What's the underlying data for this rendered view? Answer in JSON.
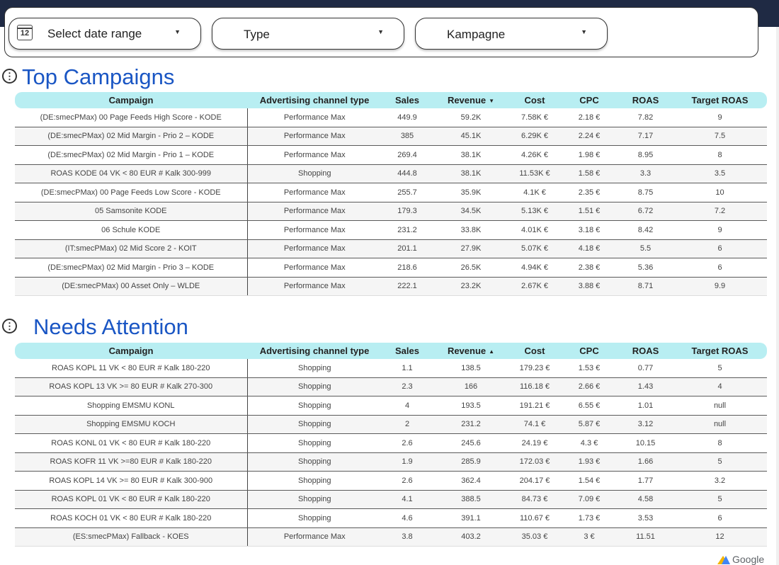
{
  "filters": {
    "date_range": "Select date range",
    "calendar_day": "12",
    "type": "Type",
    "campaign": "Kampagne"
  },
  "sections": {
    "top": "Top Campaigns",
    "attention": "Needs Attention"
  },
  "columns": [
    "Campaign",
    "Advertising channel type",
    "Sales",
    "Revenue",
    "Cost",
    "CPC",
    "ROAS",
    "Target ROAS"
  ],
  "sort_icons": {
    "desc": "▼",
    "asc": "▲"
  },
  "top_campaigns": [
    [
      "(DE:smecPMax) 00 Page Feeds High Score - KODE",
      "Performance Max",
      "449.9",
      "59.2K",
      "7.58K €",
      "2.18 €",
      "7.82",
      "9"
    ],
    [
      "(DE:smecPMax) 02 Mid Margin - Prio 2 – KODE",
      "Performance Max",
      "385",
      "45.1K",
      "6.29K €",
      "2.24 €",
      "7.17",
      "7.5"
    ],
    [
      "(DE:smecPMax) 02 Mid Margin - Prio 1 – KODE",
      "Performance Max",
      "269.4",
      "38.1K",
      "4.26K €",
      "1.98 €",
      "8.95",
      "8"
    ],
    [
      "ROAS KODE 04 VK < 80 EUR # Kalk 300-999",
      "Shopping",
      "444.8",
      "38.1K",
      "11.53K €",
      "1.58 €",
      "3.3",
      "3.5"
    ],
    [
      "(DE:smecPMax) 00 Page Feeds Low Score - KODE",
      "Performance Max",
      "255.7",
      "35.9K",
      "4.1K €",
      "2.35 €",
      "8.75",
      "10"
    ],
    [
      "05 Samsonite KODE",
      "Performance Max",
      "179.3",
      "34.5K",
      "5.13K €",
      "1.51 €",
      "6.72",
      "7.2"
    ],
    [
      "06 Schule KODE",
      "Performance Max",
      "231.2",
      "33.8K",
      "4.01K €",
      "3.18 €",
      "8.42",
      "9"
    ],
    [
      "(IT:smecPMax) 02 Mid Score 2 - KOIT",
      "Performance Max",
      "201.1",
      "27.9K",
      "5.07K €",
      "4.18 €",
      "5.5",
      "6"
    ],
    [
      "(DE:smecPMax) 02 Mid Margin - Prio 3 – KODE",
      "Performance Max",
      "218.6",
      "26.5K",
      "4.94K €",
      "2.38 €",
      "5.36",
      "6"
    ],
    [
      "(DE:smecPMax) 00 Asset Only – WLDE",
      "Performance Max",
      "222.1",
      "23.2K",
      "2.67K €",
      "3.88 €",
      "8.71",
      "9.9"
    ]
  ],
  "needs_attention": [
    [
      "ROAS KOPL 11 VK < 80 EUR # Kalk 180-220",
      "Shopping",
      "1.1",
      "138.5",
      "179.23 €",
      "1.53 €",
      "0.77",
      "5"
    ],
    [
      "ROAS KOPL 13 VK >= 80 EUR # Kalk 270-300",
      "Shopping",
      "2.3",
      "166",
      "116.18 €",
      "2.66 €",
      "1.43",
      "4"
    ],
    [
      "Shopping EMSMU KONL",
      "Shopping",
      "4",
      "193.5",
      "191.21 €",
      "6.55 €",
      "1.01",
      "null"
    ],
    [
      "Shopping EMSMU KOCH",
      "Shopping",
      "2",
      "231.2",
      "74.1 €",
      "5.87 €",
      "3.12",
      "null"
    ],
    [
      "ROAS KONL 01 VK < 80 EUR # Kalk 180-220",
      "Shopping",
      "2.6",
      "245.6",
      "24.19 €",
      "4.3 €",
      "10.15",
      "8"
    ],
    [
      "ROAS KOFR 11 VK >=80 EUR # Kalk 180-220",
      "Shopping",
      "1.9",
      "285.9",
      "172.03 €",
      "1.93 €",
      "1.66",
      "5"
    ],
    [
      "ROAS KOPL 14 VK >= 80 EUR # Kalk 300-900",
      "Shopping",
      "2.6",
      "362.4",
      "204.17 €",
      "1.54 €",
      "1.77",
      "3.2"
    ],
    [
      "ROAS KOPL 01 VK < 80 EUR # Kalk 180-220",
      "Shopping",
      "4.1",
      "388.5",
      "84.73 €",
      "7.09 €",
      "4.58",
      "5"
    ],
    [
      "ROAS KOCH 01 VK < 80 EUR # Kalk 180-220",
      "Shopping",
      "4.6",
      "391.1",
      "110.67 €",
      "1.73 €",
      "3.53",
      "6"
    ],
    [
      "(ES:smecPMax) Fallback - KOES",
      "Performance Max",
      "3.8",
      "403.2",
      "35.03 €",
      "3 €",
      "11.51",
      "12"
    ]
  ],
  "footer": {
    "logo_text": "Google"
  },
  "colors": {
    "header_fill": "#b8eef2",
    "title": "#1a56c4",
    "topbar": "#1f2a44"
  }
}
